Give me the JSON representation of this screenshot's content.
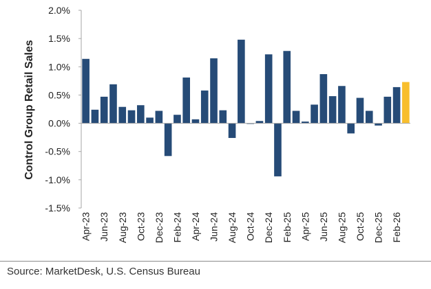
{
  "chart_data": {
    "type": "bar",
    "ylabel": "Control Group Retail Sales",
    "ylim": [
      -1.5,
      2.0
    ],
    "yticks": [
      "2.0%",
      "1.5%",
      "1.0%",
      "0.5%",
      "0.0%",
      "-0.5%",
      "-1.0%",
      "-1.5%"
    ],
    "ytick_values": [
      2.0,
      1.5,
      1.0,
      0.5,
      0.0,
      -0.5,
      -1.0,
      -1.5
    ],
    "categories": [
      "Apr-23",
      "May-23",
      "Jun-23",
      "Jul-23",
      "Aug-23",
      "Sep-23",
      "Oct-23",
      "Nov-23",
      "Dec-23",
      "Jan-24",
      "Feb-24",
      "Mar-24",
      "Apr-24",
      "May-24",
      "Jun-24",
      "Jul-24",
      "Aug-24",
      "Sep-24",
      "Oct-24",
      "Nov-24",
      "Dec-24",
      "Jan-25",
      "Feb-25",
      "Mar-25",
      "Apr-25",
      "May-25",
      "Jun-25",
      "Jul-25",
      "Aug-25",
      "Sep-25",
      "Oct-25",
      "Nov-25",
      "Dec-25",
      "Jan-26",
      "Feb-26",
      "Mar-26"
    ],
    "xtick_labels": [
      "Apr-23",
      "Jun-23",
      "Aug-23",
      "Oct-23",
      "Dec-23",
      "Feb-24",
      "Apr-24",
      "Jun-24",
      "Aug-24",
      "Oct-24",
      "Dec-24",
      "Feb-25",
      "Apr-25",
      "Jun-25",
      "Aug-25",
      "Oct-25",
      "Dec-25",
      "Feb-26"
    ],
    "values": [
      1.14,
      0.24,
      0.47,
      0.69,
      0.29,
      0.23,
      0.32,
      0.1,
      0.22,
      -0.58,
      0.15,
      0.81,
      0.07,
      0.58,
      1.15,
      0.23,
      -0.26,
      1.48,
      0.0,
      0.04,
      1.22,
      -0.94,
      1.28,
      0.22,
      0.03,
      0.33,
      0.87,
      0.48,
      0.66,
      -0.18,
      0.45,
      0.22,
      -0.04,
      0.47,
      0.64,
      0.73
    ],
    "highlight_index": 35,
    "colors": {
      "bar": "#264B77",
      "highlight": "#F8BE2D",
      "axis": "#a6a6a6"
    },
    "grid": false
  },
  "source": "Source: MarketDesk, U.S. Census Bureau"
}
